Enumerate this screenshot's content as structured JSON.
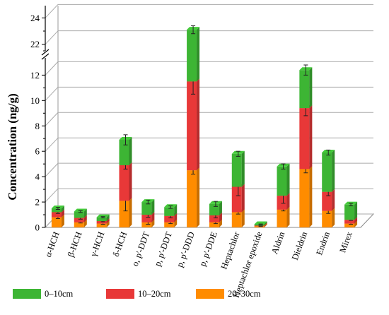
{
  "chart_data": {
    "type": "bar",
    "stacked": true,
    "projection": "3d",
    "ylabel": "Concentration (ng/g)",
    "xlabel": "",
    "axis_break": {
      "lower_max": 12.8,
      "upper_range": [
        21.5,
        24.5
      ]
    },
    "y_ticks_lower": [
      0,
      2,
      4,
      6,
      8,
      10,
      12
    ],
    "y_ticks_upper": [
      22,
      24
    ],
    "grid": true,
    "legend_position": "bottom",
    "categories": [
      "α-HCH",
      "β-HCH",
      "γ-HCH",
      "δ-HCH",
      "o, p'-DDT",
      "p, p'-DDT",
      "p, p'-DDD",
      "p, p'-DDE",
      "Heptachlor",
      "Heptachlor epoxide",
      "Aldrin",
      "Dieldrin",
      "Endrin",
      "Mirex"
    ],
    "series": [
      {
        "name": "20–30cm",
        "color": "#ff8c00",
        "values": [
          0.8,
          0.4,
          0.3,
          2.1,
          0.4,
          0.4,
          4.5,
          0.4,
          1.2,
          0.1,
          1.4,
          4.6,
          1.3,
          0.3
        ],
        "errors": [
          0.1,
          0.05,
          0.05,
          0.8,
          0.15,
          0.1,
          0.3,
          0.1,
          0.15,
          0.02,
          0.1,
          0.3,
          0.2,
          0.05
        ]
      },
      {
        "name": "10–20cm",
        "color": "#e83838",
        "values": [
          0.4,
          0.35,
          0.2,
          2.8,
          0.6,
          0.5,
          7.0,
          0.55,
          2.0,
          0.05,
          1.1,
          4.8,
          1.5,
          0.3
        ],
        "errors": [
          0.1,
          0.1,
          0.05,
          0.3,
          0.2,
          0.15,
          1.0,
          0.2,
          0.7,
          0.02,
          0.6,
          0.6,
          0.3,
          0.05
        ]
      },
      {
        "name": "0–10cm",
        "color": "#3db534",
        "values": [
          0.3,
          0.5,
          0.3,
          2.0,
          1.0,
          0.7,
          11.6,
          0.9,
          2.6,
          0.1,
          2.3,
          3.0,
          3.1,
          1.2
        ],
        "errors": [
          0.08,
          0.07,
          0.05,
          0.4,
          0.15,
          0.1,
          0.3,
          0.2,
          0.2,
          0.02,
          0.2,
          0.4,
          0.2,
          0.1
        ]
      }
    ]
  }
}
